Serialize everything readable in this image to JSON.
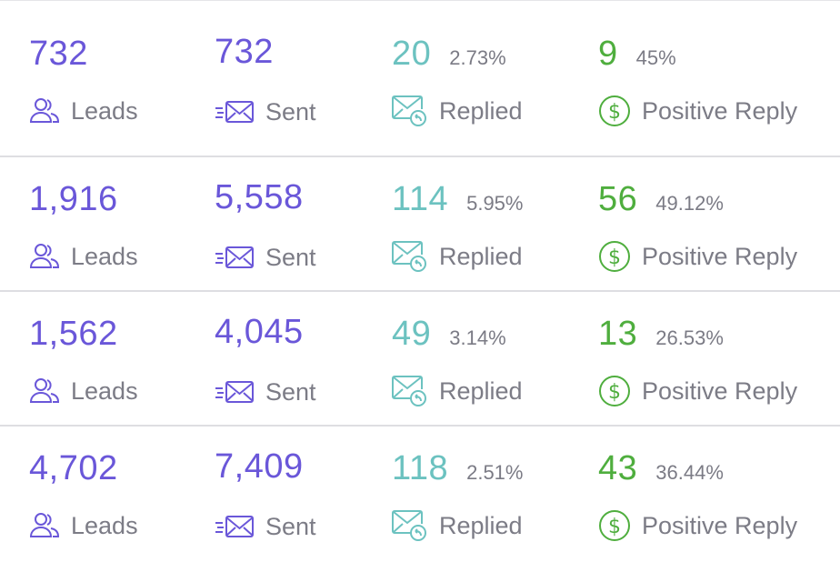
{
  "labels": {
    "leads": "Leads",
    "sent": "Sent",
    "replied": "Replied",
    "positive": "Positive Reply"
  },
  "colors": {
    "purple": "#6a57d9",
    "teal": "#6cc2c0",
    "green": "#4fae3e",
    "label_gray": "#7c7c86"
  },
  "icons": {
    "leads": "users-icon",
    "sent": "send-mail-icon",
    "replied": "mail-reply-icon",
    "positive": "dollar-circle-icon"
  },
  "rows": [
    {
      "leads": "732",
      "sent": "732",
      "replied": "20",
      "replied_pct": "2.73%",
      "positive": "9",
      "positive_pct": "45%"
    },
    {
      "leads": "1,916",
      "sent": "5,558",
      "replied": "114",
      "replied_pct": "5.95%",
      "positive": "56",
      "positive_pct": "49.12%"
    },
    {
      "leads": "1,562",
      "sent": "4,045",
      "replied": "49",
      "replied_pct": "3.14%",
      "positive": "13",
      "positive_pct": "26.53%"
    },
    {
      "leads": "4,702",
      "sent": "7,409",
      "replied": "118",
      "replied_pct": "2.51%",
      "positive": "43",
      "positive_pct": "36.44%"
    }
  ]
}
